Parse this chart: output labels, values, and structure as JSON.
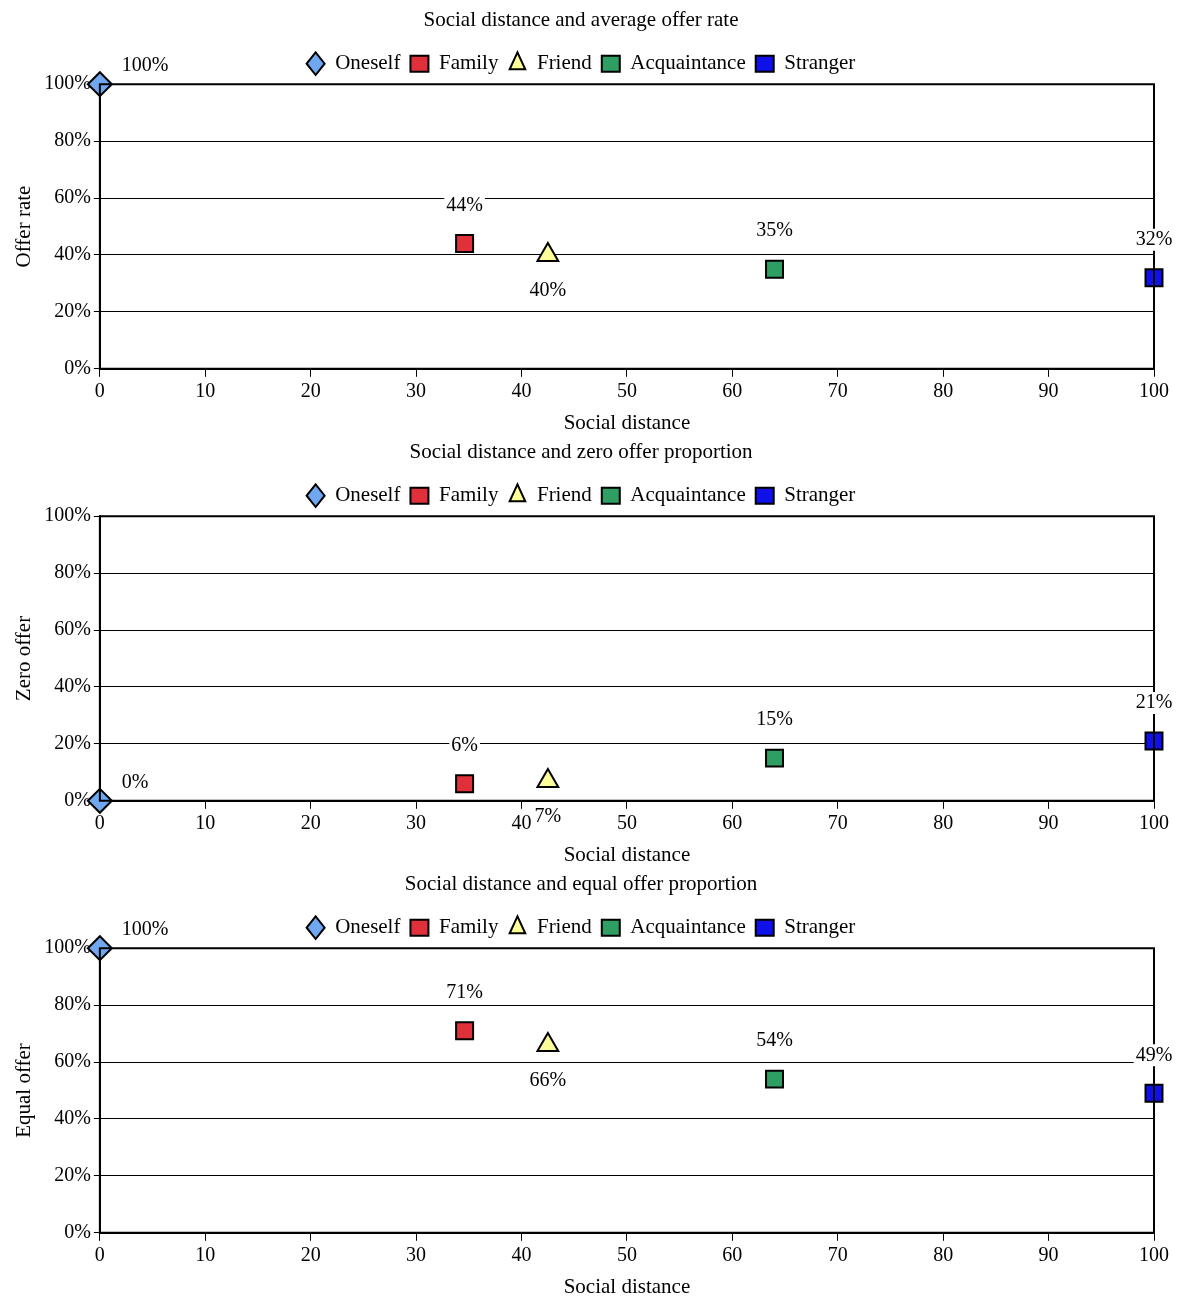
{
  "chart_data": [
    {
      "type": "scatter",
      "title": "Social distance and average offer rate",
      "xlabel": "Social distance",
      "ylabel": "Offer rate",
      "xlim": [
        0,
        100
      ],
      "xticks": [
        0,
        10,
        20,
        30,
        40,
        50,
        60,
        70,
        80,
        90,
        100
      ],
      "ylim": [
        0,
        100
      ],
      "yticks": [
        {
          "value": 0,
          "label": "0%"
        },
        {
          "value": 20,
          "label": "20%"
        },
        {
          "value": 40,
          "label": "40%"
        },
        {
          "value": 60,
          "label": "60%"
        },
        {
          "value": 80,
          "label": "80%"
        },
        {
          "value": 100,
          "label": "100%"
        }
      ],
      "grid": "y",
      "legend": "top",
      "series": [
        {
          "name": "Oneself",
          "color": "#6fa8f0",
          "marker": "diamond",
          "x": [
            0
          ],
          "values": [
            100
          ],
          "value_labels": [
            "100%"
          ]
        },
        {
          "name": "Family",
          "color": "#e0303a",
          "marker": "square",
          "x": [
            34.6
          ],
          "values": [
            44
          ],
          "value_labels": [
            "44%"
          ]
        },
        {
          "name": "Friend",
          "color": "#ffff99",
          "marker": "triangle",
          "x": [
            42.5
          ],
          "values": [
            40
          ],
          "value_labels": [
            "40%"
          ]
        },
        {
          "name": "Acquaintance",
          "color": "#2e9e62",
          "marker": "square",
          "x": [
            64
          ],
          "values": [
            35
          ],
          "value_labels": [
            "35%"
          ]
        },
        {
          "name": "Stranger",
          "color": "#1010e8",
          "marker": "square",
          "x": [
            100
          ],
          "values": [
            32
          ],
          "value_labels": [
            "32%"
          ]
        }
      ]
    },
    {
      "type": "scatter",
      "title": "Social distance and zero offer proportion",
      "xlabel": "Social distance",
      "ylabel": "Zero offer",
      "xlim": [
        0,
        100
      ],
      "xticks": [
        0,
        10,
        20,
        30,
        40,
        50,
        60,
        70,
        80,
        90,
        100
      ],
      "ylim": [
        0,
        100
      ],
      "yticks": [
        {
          "value": 0,
          "label": "0%"
        },
        {
          "value": 20,
          "label": "20%"
        },
        {
          "value": 40,
          "label": "40%"
        },
        {
          "value": 60,
          "label": "60%"
        },
        {
          "value": 80,
          "label": "80%"
        },
        {
          "value": 100,
          "label": "100%"
        }
      ],
      "grid": "y",
      "legend": "top",
      "series": [
        {
          "name": "Oneself",
          "color": "#6fa8f0",
          "marker": "diamond",
          "x": [
            0
          ],
          "values": [
            0
          ],
          "value_labels": [
            "0%"
          ]
        },
        {
          "name": "Family",
          "color": "#e0303a",
          "marker": "square",
          "x": [
            34.6
          ],
          "values": [
            6
          ],
          "value_labels": [
            "6%"
          ]
        },
        {
          "name": "Friend",
          "color": "#ffff99",
          "marker": "triangle",
          "x": [
            42.5
          ],
          "values": [
            7
          ],
          "value_labels": [
            "7%"
          ]
        },
        {
          "name": "Acquaintance",
          "color": "#2e9e62",
          "marker": "square",
          "x": [
            64
          ],
          "values": [
            15
          ],
          "value_labels": [
            "15%"
          ]
        },
        {
          "name": "Stranger",
          "color": "#1010e8",
          "marker": "square",
          "x": [
            100
          ],
          "values": [
            21
          ],
          "value_labels": [
            "21%"
          ]
        }
      ]
    },
    {
      "type": "scatter",
      "title": "Social distance and equal offer proportion",
      "xlabel": "Social distance",
      "ylabel": "Equal offer",
      "xlim": [
        0,
        100
      ],
      "xticks": [
        0,
        10,
        20,
        30,
        40,
        50,
        60,
        70,
        80,
        90,
        100
      ],
      "ylim": [
        0,
        100
      ],
      "yticks": [
        {
          "value": 0,
          "label": "0%"
        },
        {
          "value": 20,
          "label": "20%"
        },
        {
          "value": 40,
          "label": "40%"
        },
        {
          "value": 60,
          "label": "60%"
        },
        {
          "value": 80,
          "label": "80%"
        },
        {
          "value": 100,
          "label": "100%"
        }
      ],
      "grid": "y",
      "legend": "top",
      "series": [
        {
          "name": "Oneself",
          "color": "#6fa8f0",
          "marker": "diamond",
          "x": [
            0
          ],
          "values": [
            100
          ],
          "value_labels": [
            "100%"
          ]
        },
        {
          "name": "Family",
          "color": "#e0303a",
          "marker": "square",
          "x": [
            34.6
          ],
          "values": [
            71
          ],
          "value_labels": [
            "71%"
          ]
        },
        {
          "name": "Friend",
          "color": "#ffff99",
          "marker": "triangle",
          "x": [
            42.5
          ],
          "values": [
            66
          ],
          "value_labels": [
            "66%"
          ]
        },
        {
          "name": "Acquaintance",
          "color": "#2e9e62",
          "marker": "square",
          "x": [
            64
          ],
          "values": [
            54
          ],
          "value_labels": [
            "54%"
          ]
        },
        {
          "name": "Stranger",
          "color": "#1010e8",
          "marker": "square",
          "x": [
            100
          ],
          "values": [
            49
          ],
          "value_labels": [
            "49%"
          ]
        }
      ]
    }
  ]
}
